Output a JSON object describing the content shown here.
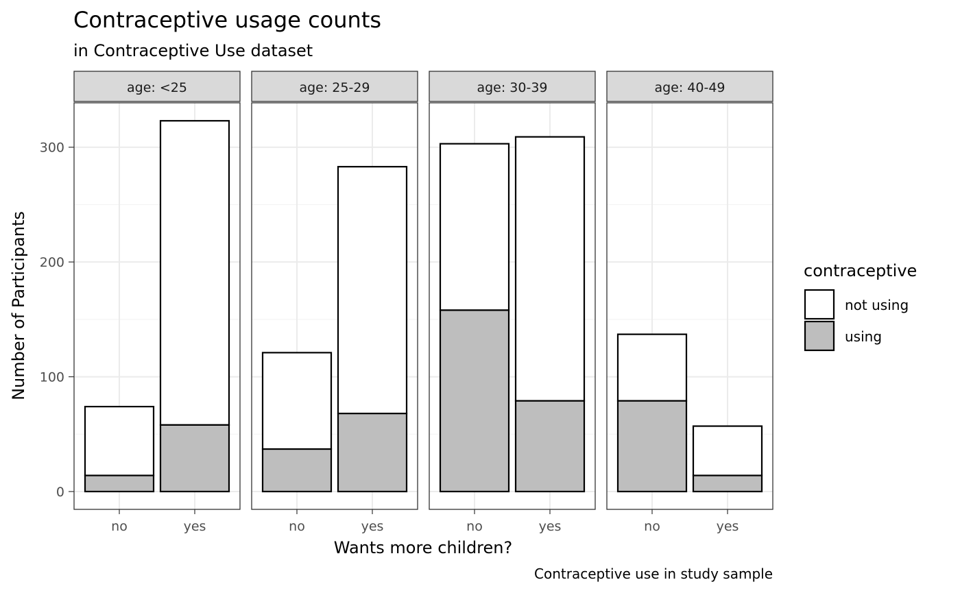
{
  "chart_data": {
    "type": "bar",
    "stacked": true,
    "title": "Contraceptive usage counts",
    "subtitle": "in Contraceptive Use dataset",
    "caption": "Contraceptive use in study sample",
    "xlabel": "Wants more children?",
    "ylabel": "Number of Participants",
    "ylim": [
      0,
      340
    ],
    "yticks": [
      0,
      100,
      200,
      300
    ],
    "grid": true,
    "categories": [
      "no",
      "yes"
    ],
    "legend": {
      "title": "contraceptive",
      "placement": "right",
      "entries": [
        {
          "label": "not using",
          "color": "#FFFFFF"
        },
        {
          "label": "using",
          "color": "#BEBEBE"
        }
      ]
    },
    "facets": [
      {
        "label": "age: <25",
        "series": [
          {
            "name": "using",
            "values": [
              14,
              58
            ]
          },
          {
            "name": "not using",
            "values": [
              60,
              265
            ]
          }
        ]
      },
      {
        "label": "age: 25-29",
        "series": [
          {
            "name": "using",
            "values": [
              37,
              68
            ]
          },
          {
            "name": "not using",
            "values": [
              84,
              215
            ]
          }
        ]
      },
      {
        "label": "age: 30-39",
        "series": [
          {
            "name": "using",
            "values": [
              158,
              79
            ]
          },
          {
            "name": "not using",
            "values": [
              145,
              230
            ]
          }
        ]
      },
      {
        "label": "age: 40-49",
        "series": [
          {
            "name": "using",
            "values": [
              79,
              14
            ]
          },
          {
            "name": "not using",
            "values": [
              58,
              43
            ]
          }
        ]
      }
    ]
  }
}
